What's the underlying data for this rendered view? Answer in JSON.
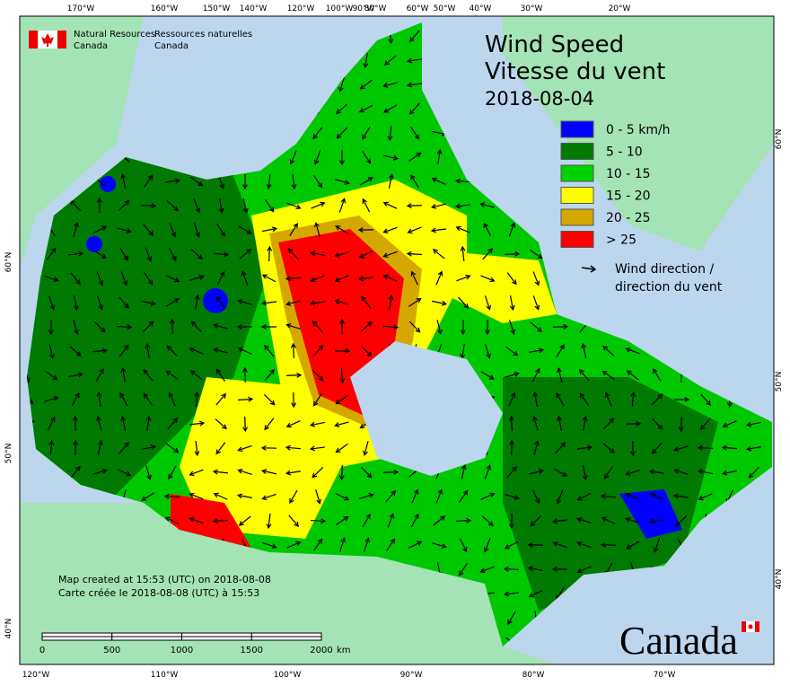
{
  "agency": {
    "en": [
      "Natural Resources",
      "Canada"
    ],
    "fr": [
      "Ressources naturelles",
      "Canada"
    ]
  },
  "title": {
    "en": "Wind Speed",
    "fr": "Vitesse du vent",
    "date": "2018-08-04"
  },
  "legend": {
    "items": [
      {
        "label": "0 - 5 km/h",
        "color": "#0000ff"
      },
      {
        "label": "5 - 10",
        "color": "#007a00"
      },
      {
        "label": "10 - 15",
        "color": "#00d200"
      },
      {
        "label": "15 - 20",
        "color": "#ffff00"
      },
      {
        "label": "20 - 25",
        "color": "#d4a800"
      },
      {
        "label": "> 25",
        "color": "#ff0000"
      }
    ],
    "direction": [
      "Wind direction /",
      "direction du vent"
    ]
  },
  "notes": [
    "Map created at 15:53 (UTC) on 2018-08-08",
    "Carte créée le 2018-08-08 (UTC) à 15:53"
  ],
  "scale_bar": {
    "ticks": [
      0,
      500,
      1000,
      1500,
      2000
    ],
    "unit": "km"
  },
  "graticule": {
    "top": [
      "170°W",
      "160°W",
      "150°W",
      "140°W",
      "120°W",
      "100°W",
      "90°W",
      "80°W",
      "60°W",
      "50°W",
      "40°W",
      "30°W",
      "20°W"
    ],
    "bottom": [
      "120°W",
      "110°W",
      "100°W",
      "90°W",
      "80°W",
      "70°W"
    ],
    "left": [
      "60°N",
      "50°N",
      "40°N"
    ],
    "right": [
      "60°N",
      "50°N",
      "40°N"
    ]
  },
  "wordmark": "Canada"
}
